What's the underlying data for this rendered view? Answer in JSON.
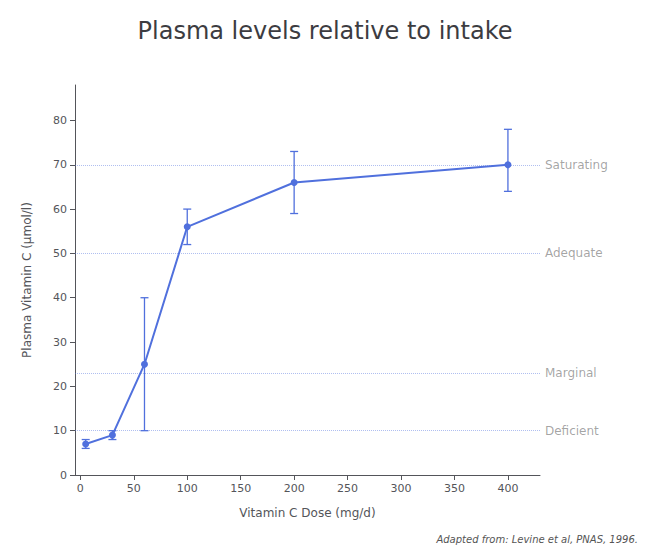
{
  "chart_data": {
    "type": "line",
    "title": "Plasma levels relative to intake",
    "xlabel": "Vitamin C Dose (mg/d)",
    "ylabel": "Plasma Vitamin C (μmol/l)",
    "x": [
      5,
      30,
      60,
      100,
      200,
      400
    ],
    "values": [
      7,
      9,
      25,
      56,
      66,
      70
    ],
    "yerr_low": [
      1,
      1,
      15,
      4,
      7,
      6
    ],
    "yerr_high": [
      1,
      1,
      15,
      4,
      7,
      8
    ],
    "xlim": [
      -5,
      430
    ],
    "ylim": [
      0,
      88
    ],
    "xticks": [
      0,
      50,
      100,
      150,
      200,
      250,
      300,
      350,
      400
    ],
    "yticks": [
      0,
      10,
      20,
      30,
      40,
      50,
      60,
      70,
      80
    ],
    "hlines": [
      {
        "y": 10,
        "label": "Deficient"
      },
      {
        "y": 23,
        "label": "Marginal"
      },
      {
        "y": 50,
        "label": "Adequate"
      },
      {
        "y": 70,
        "label": "Saturating"
      }
    ],
    "citation": "Adapted from: Levine et al, PNAS, 1996.",
    "marker": "circle",
    "grid": false
  }
}
